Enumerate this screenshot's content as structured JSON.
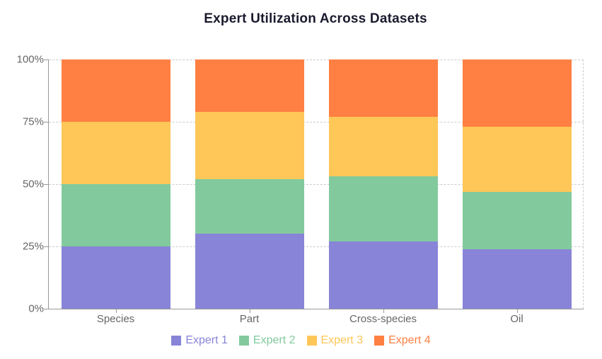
{
  "title": "Expert Utilization Across Datasets",
  "chart_data": {
    "type": "bar",
    "stacked": true,
    "unit": "percent",
    "title": "Expert Utilization Across Datasets",
    "categories": [
      "Species",
      "Part",
      "Cross-species",
      "Oil"
    ],
    "series": [
      {
        "name": "Expert 1",
        "color": "#8884d8",
        "values": [
          25,
          30,
          27,
          24
        ]
      },
      {
        "name": "Expert 2",
        "color": "#82ca9d",
        "values": [
          25,
          22,
          26,
          23
        ]
      },
      {
        "name": "Expert 3",
        "color": "#ffc658",
        "values": [
          25,
          27,
          24,
          26
        ]
      },
      {
        "name": "Expert 4",
        "color": "#ff8042",
        "values": [
          25,
          21,
          23,
          27
        ]
      }
    ],
    "xlabel": "",
    "ylabel": "",
    "ylim": [
      0,
      100
    ],
    "y_ticks": [
      0,
      25,
      50,
      75,
      100
    ],
    "y_tick_labels": [
      "0%",
      "25%",
      "50%",
      "75%",
      "100%"
    ],
    "grid": "horizontal dashed, right-edge vertical dashed",
    "legend_position": "bottom"
  },
  "colors": {
    "axis": "#999999",
    "grid": "#cccccc",
    "tick_label": "#666666",
    "title_text": "#1a1a2e"
  }
}
